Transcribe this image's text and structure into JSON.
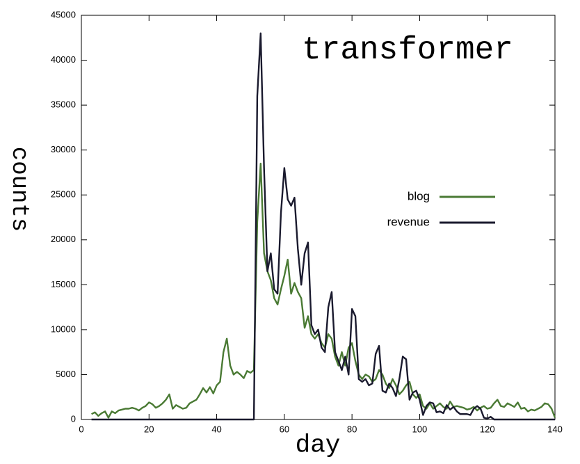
{
  "chart_data": {
    "type": "line",
    "title": "transformer",
    "xlabel": "day",
    "ylabel": "counts",
    "xlim": [
      0,
      140
    ],
    "xticks": [
      0,
      20,
      40,
      60,
      80,
      100,
      120,
      140
    ],
    "ylim": [
      0,
      45000
    ],
    "yticks": [
      0,
      5000,
      10000,
      15000,
      20000,
      25000,
      30000,
      35000,
      40000,
      45000
    ],
    "legend": "right",
    "x": [
      3,
      4,
      5,
      6,
      7,
      8,
      9,
      10,
      11,
      12,
      13,
      14,
      15,
      16,
      17,
      18,
      19,
      20,
      21,
      22,
      23,
      24,
      25,
      26,
      27,
      28,
      29,
      30,
      31,
      32,
      33,
      34,
      35,
      36,
      37,
      38,
      39,
      40,
      41,
      42,
      43,
      44,
      45,
      46,
      47,
      48,
      49,
      50,
      51,
      52,
      53,
      54,
      55,
      56,
      57,
      58,
      59,
      60,
      61,
      62,
      63,
      64,
      65,
      66,
      67,
      68,
      69,
      70,
      71,
      72,
      73,
      74,
      75,
      76,
      77,
      78,
      79,
      80,
      81,
      82,
      83,
      84,
      85,
      86,
      87,
      88,
      89,
      90,
      91,
      92,
      93,
      94,
      95,
      96,
      97,
      98,
      99,
      100,
      101,
      102,
      103,
      104,
      105,
      106,
      107,
      108,
      109,
      110,
      111,
      112,
      113,
      114,
      115,
      116,
      117,
      118,
      119,
      120,
      121,
      122,
      123,
      124,
      125,
      126,
      127,
      128,
      129,
      130,
      131,
      132,
      133,
      134,
      135,
      136,
      137,
      138,
      139,
      140
    ],
    "series": [
      {
        "name": "blog",
        "color": "#4a7a34",
        "values": [
          600,
          800,
          400,
          700,
          900,
          200,
          900,
          700,
          1000,
          1100,
          1200,
          1200,
          1300,
          1200,
          1000,
          1300,
          1500,
          1900,
          1700,
          1300,
          1500,
          1800,
          2200,
          2800,
          1200,
          1600,
          1400,
          1200,
          1300,
          1800,
          2000,
          2200,
          2800,
          3500,
          3000,
          3600,
          2900,
          3800,
          4200,
          7500,
          9000,
          6000,
          5000,
          5300,
          5000,
          4600,
          5400,
          5200,
          5500,
          22000,
          28500,
          18500,
          16500,
          15500,
          13500,
          12800,
          14500,
          16000,
          17800,
          14000,
          15200,
          14200,
          13500,
          10200,
          11500,
          9500,
          9000,
          9500,
          8500,
          8000,
          9500,
          9000,
          7000,
          6000,
          7500,
          6000,
          8000,
          8500,
          6500,
          5000,
          4500,
          5000,
          4800,
          4200,
          4500,
          5500,
          5000,
          4000,
          3500,
          4500,
          3800,
          2800,
          3200,
          3800,
          4200,
          2800,
          2400,
          2800,
          1500,
          1200,
          1800,
          1200,
          1500,
          1800,
          1400,
          1200,
          2000,
          1400,
          1500,
          1400,
          1300,
          1100,
          1200,
          1400,
          1000,
          1300,
          1500,
          1200,
          1300,
          1800,
          2200,
          1500,
          1400,
          1800,
          1600,
          1400,
          1900,
          1200,
          1300,
          900,
          1100,
          1000,
          1200,
          1400,
          1800,
          1700,
          1200,
          200
        ]
      },
      {
        "name": "revenue",
        "color": "#1a1a2e",
        "values": [
          0,
          0,
          0,
          0,
          0,
          0,
          0,
          0,
          0,
          0,
          0,
          0,
          0,
          0,
          0,
          0,
          0,
          0,
          0,
          0,
          0,
          0,
          0,
          0,
          0,
          0,
          0,
          0,
          0,
          0,
          0,
          0,
          0,
          0,
          0,
          0,
          0,
          0,
          0,
          0,
          0,
          0,
          0,
          0,
          0,
          0,
          0,
          0,
          0,
          36000,
          43000,
          28000,
          16500,
          18500,
          14500,
          14000,
          23000,
          28000,
          24500,
          23800,
          24700,
          19000,
          15000,
          18500,
          19700,
          10500,
          9500,
          10000,
          8000,
          7500,
          12500,
          14200,
          7500,
          6500,
          5500,
          7000,
          5000,
          12300,
          11500,
          4500,
          4200,
          4500,
          3800,
          4000,
          7300,
          8200,
          3200,
          3000,
          4000,
          3500,
          2600,
          4500,
          7000,
          6700,
          2200,
          3000,
          3200,
          2200,
          500,
          1500,
          1900,
          1800,
          800,
          900,
          700,
          1600,
          1100,
          1400,
          900,
          600,
          600,
          600,
          500,
          1200,
          1500,
          1200,
          200,
          100,
          300,
          0,
          0,
          0,
          0,
          0,
          0,
          0,
          0,
          0,
          0,
          0,
          0,
          0,
          0,
          0,
          0,
          0,
          0,
          0
        ]
      }
    ]
  }
}
